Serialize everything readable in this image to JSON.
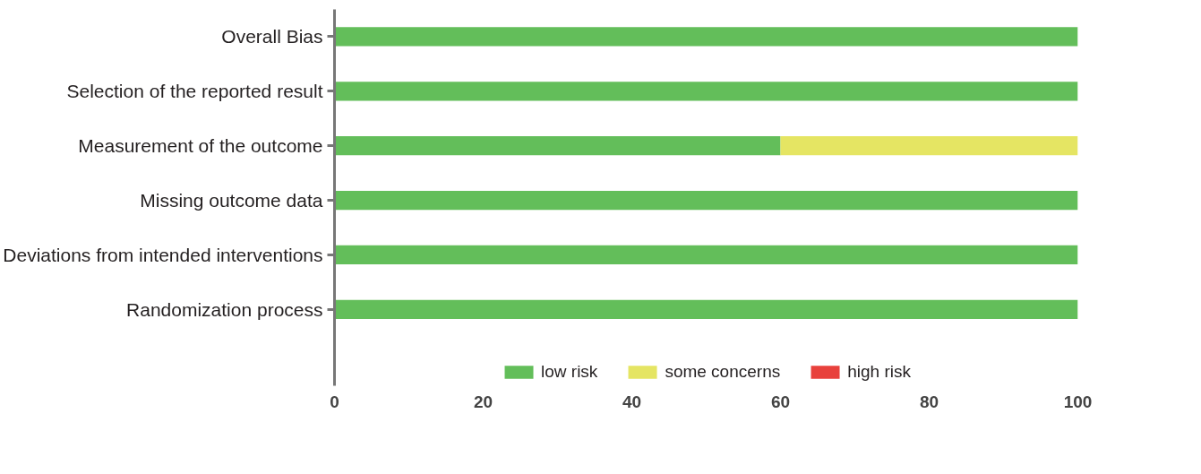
{
  "chart_data": {
    "type": "bar",
    "orientation": "horizontal",
    "stacked": true,
    "categories": [
      "Overall Bias",
      "Selection of the reported result",
      "Measurement of the outcome",
      "Missing outcome data",
      "Deviations from intended interventions",
      "Randomization process"
    ],
    "series": [
      {
        "name": "low risk",
        "color": "#63be5a",
        "values": [
          100,
          100,
          60,
          100,
          100,
          100
        ]
      },
      {
        "name": "some concerns",
        "color": "#e5e563",
        "values": [
          0,
          0,
          40,
          0,
          0,
          0
        ]
      },
      {
        "name": "high risk",
        "color": "#e8413c",
        "values": [
          0,
          0,
          0,
          0,
          0,
          0
        ]
      }
    ],
    "xlim": [
      0,
      100
    ],
    "xticks": [
      0,
      20,
      40,
      60,
      80,
      100
    ],
    "grid": false,
    "legend": "bottom"
  }
}
